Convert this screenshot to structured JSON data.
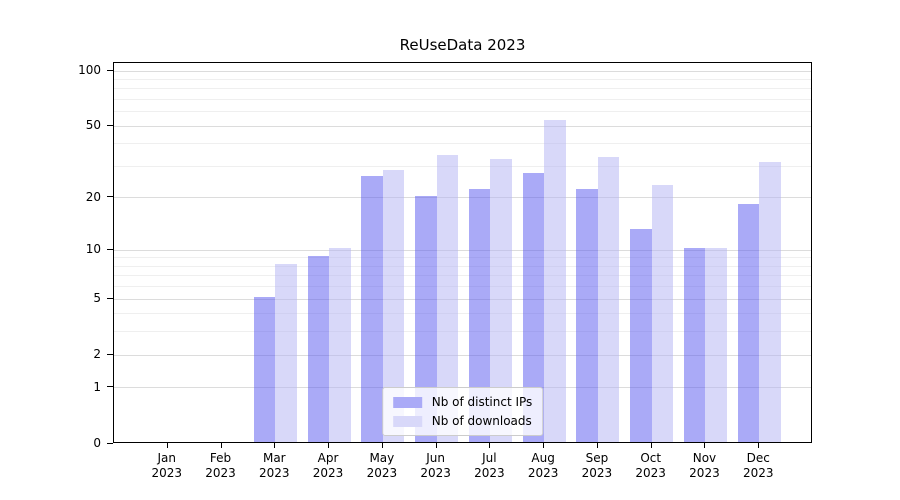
{
  "figure": {
    "background": "#ffffff"
  },
  "chart_data": {
    "type": "bar",
    "title": "ReUseData 2023",
    "categories": [
      "Jan 2023",
      "Feb 2023",
      "Mar 2023",
      "Apr 2023",
      "May 2023",
      "Jun 2023",
      "Jul 2023",
      "Aug 2023",
      "Sep 2023",
      "Oct 2023",
      "Nov 2023",
      "Dec 2023"
    ],
    "series": [
      {
        "name": "Nb of distinct IPs",
        "color": "#aaaaf7",
        "fill": "rgba(85,85,240,0.5)",
        "values": [
          0,
          0,
          5,
          9,
          26,
          20,
          22,
          27,
          22,
          13,
          10,
          18
        ]
      },
      {
        "name": "Nb of downloads",
        "color": "#d8d8f9",
        "fill": "rgba(177,177,243,0.5)",
        "values": [
          0,
          0,
          8,
          10,
          28,
          34,
          32,
          53,
          33,
          23,
          10,
          31
        ]
      }
    ],
    "xlabel": "",
    "ylabel": "",
    "y_axis": {
      "scale": "log1p",
      "major_ticks": [
        0,
        1,
        2,
        5,
        10,
        20,
        50,
        100
      ],
      "minor_gridlines": [
        3,
        4,
        6,
        7,
        8,
        9,
        30,
        40,
        60,
        70,
        80,
        90
      ],
      "ylim": [
        0,
        110.6
      ]
    },
    "grid": "both",
    "legend": {
      "position": "lower center",
      "entries": [
        "Nb of distinct IPs",
        "Nb of downloads"
      ]
    }
  },
  "colors": {
    "major_grid": "#dcdcdc",
    "minor_grid": "#efefef",
    "spine": "#000000",
    "text": "#000000",
    "legend_border": "#cccccc",
    "legend_background": "rgba(255,255,255,0.8)"
  }
}
